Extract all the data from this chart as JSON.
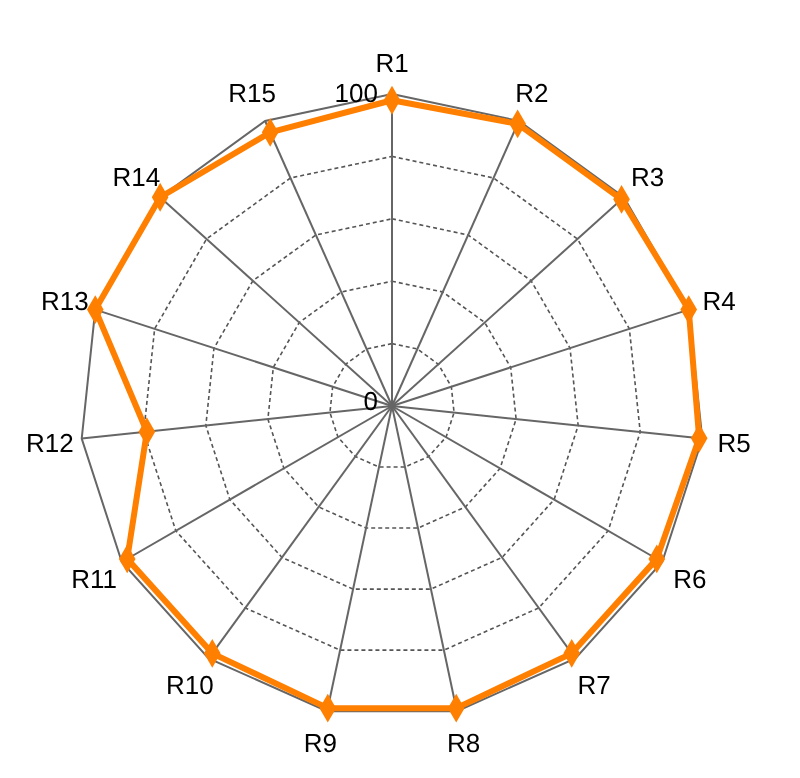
{
  "chart_data": {
    "type": "radar",
    "categories": [
      "R1",
      "R2",
      "R3",
      "R4",
      "R5",
      "R6",
      "R7",
      "R8",
      "R9",
      "R10",
      "R11",
      "R12",
      "R13",
      "R14",
      "R15"
    ],
    "series": [
      {
        "color": "#ff7f00",
        "values": [
          98,
          99,
          99,
          100,
          99,
          98,
          98,
          99,
          99,
          98,
          98,
          79,
          100,
          100,
          96
        ]
      }
    ],
    "ylim": [
      0,
      100
    ],
    "yticks": [
      0,
      100
    ],
    "grid": true,
    "marker": "diamond",
    "line_style": "solid"
  }
}
